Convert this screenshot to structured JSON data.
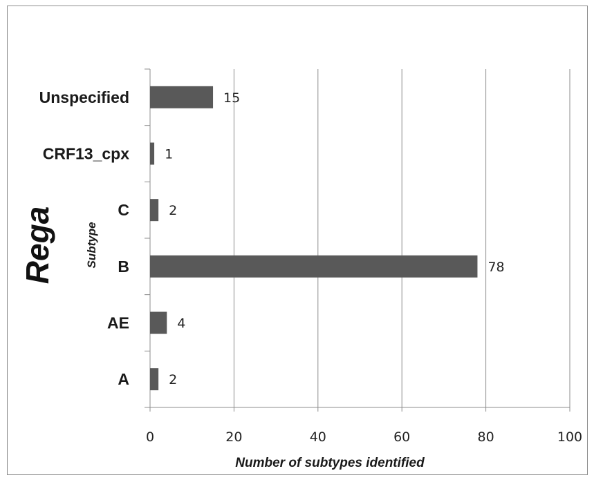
{
  "chart_data": {
    "type": "bar",
    "orientation": "horizontal",
    "side_title": "Rega",
    "xlabel": "Number of subtypes identified",
    "ylabel": "Subtype",
    "categories": [
      "Unspecified",
      "CRF13_cpx",
      "C",
      "B",
      "AE",
      "A"
    ],
    "values": [
      15,
      1,
      2,
      78,
      4,
      2
    ],
    "xlim": [
      0,
      100
    ],
    "xticks": [
      0,
      20,
      40,
      60,
      80,
      100
    ],
    "grid": "vertical",
    "legend": "none",
    "bar_color": "#595959"
  }
}
